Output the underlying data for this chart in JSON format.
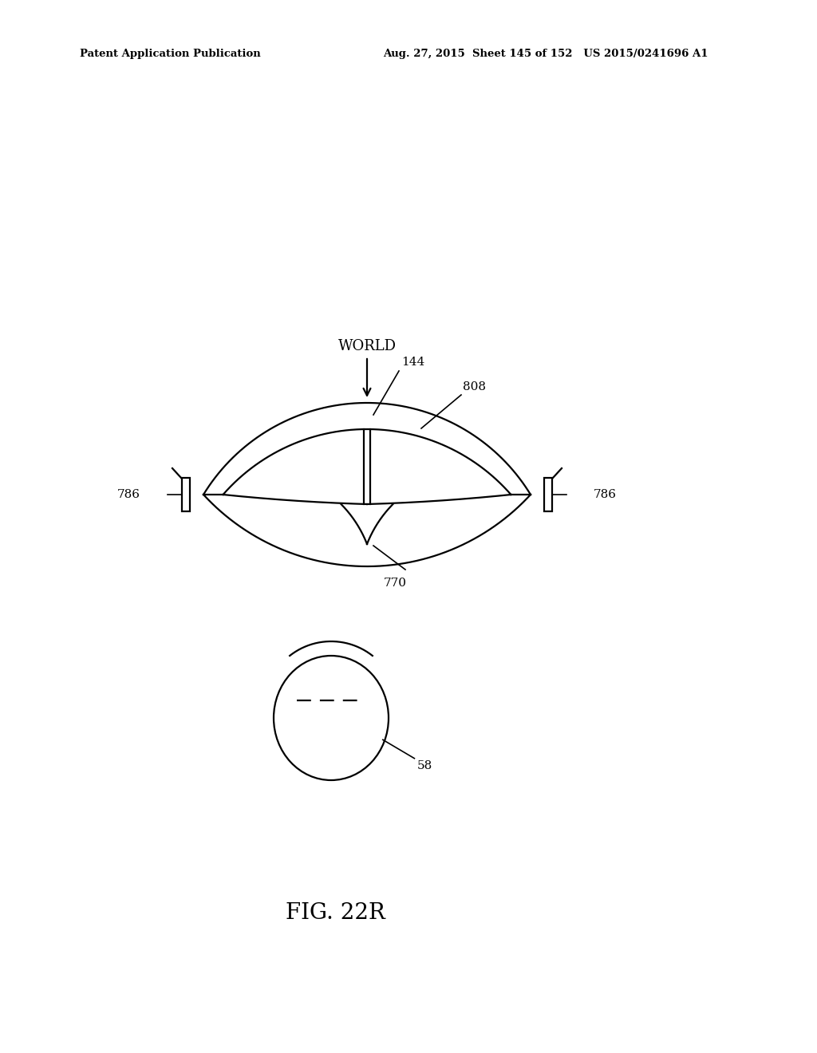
{
  "bg_color": "#ffffff",
  "line_color": "#000000",
  "header_left": "Patent Application Publication",
  "header_mid": "Aug. 27, 2015  Sheet 145 of 152   US 2015/0241696 A1",
  "fig_label": "FIG. 22R",
  "label_144": "144",
  "label_world": "WORLD",
  "label_808": "808",
  "label_770": "770",
  "label_786": "786",
  "label_58": "58",
  "lw": 1.6
}
